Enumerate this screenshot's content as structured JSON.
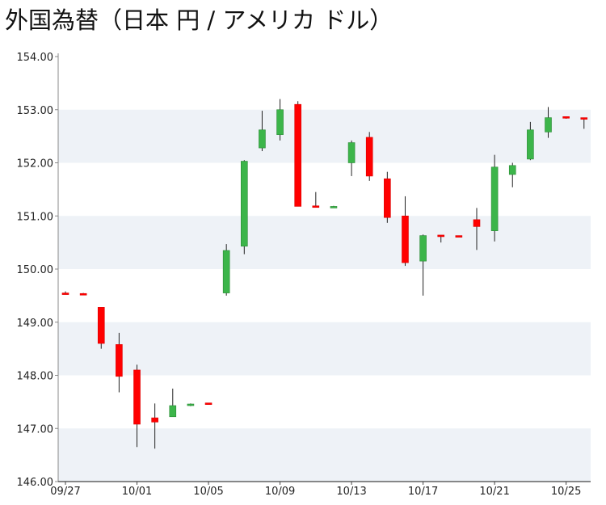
{
  "title": "外国為替（日本 円 / アメリカ ドル）",
  "colors": {
    "up": "#3cb54a",
    "down": "#ff0000",
    "band": "#eef2f7",
    "axis": "#888888"
  },
  "chart_data": {
    "type": "candlestick",
    "title": "外国為替（日本 円 / アメリカ ドル）",
    "ylim": [
      146.0,
      154.0
    ],
    "y_ticks": [
      "146.00",
      "147.00",
      "148.00",
      "149.00",
      "150.00",
      "151.00",
      "152.00",
      "153.00",
      "154.00"
    ],
    "x_tick_labels": [
      "09/27",
      "10/01",
      "10/05",
      "10/09",
      "10/13",
      "10/17",
      "10/21",
      "10/25"
    ],
    "grid_bands": true,
    "candles": [
      {
        "date": "09/27",
        "open": 149.55,
        "high": 149.58,
        "low": 149.52,
        "close": 149.53
      },
      {
        "date": "09/28",
        "open": 149.54,
        "high": 149.55,
        "low": 149.52,
        "close": 149.53
      },
      {
        "date": "09/29",
        "open": 149.28,
        "high": 149.28,
        "low": 148.5,
        "close": 148.6
      },
      {
        "date": "09/30",
        "open": 148.58,
        "high": 148.8,
        "low": 147.68,
        "close": 147.98
      },
      {
        "date": "10/01",
        "open": 148.1,
        "high": 148.2,
        "low": 146.65,
        "close": 147.08
      },
      {
        "date": "10/02",
        "open": 147.2,
        "high": 147.47,
        "low": 146.62,
        "close": 147.12
      },
      {
        "date": "10/03",
        "open": 147.22,
        "high": 147.75,
        "low": 147.22,
        "close": 147.43
      },
      {
        "date": "10/04",
        "open": 147.43,
        "high": 147.47,
        "low": 147.42,
        "close": 147.46
      },
      {
        "date": "10/05",
        "open": 147.48,
        "high": 147.48,
        "low": 147.46,
        "close": 147.47
      },
      {
        "date": "10/06",
        "open": 149.55,
        "high": 150.47,
        "low": 149.5,
        "close": 150.35
      },
      {
        "date": "10/07",
        "open": 150.43,
        "high": 152.05,
        "low": 150.28,
        "close": 152.03
      },
      {
        "date": "10/08",
        "open": 152.28,
        "high": 152.98,
        "low": 152.22,
        "close": 152.62
      },
      {
        "date": "10/09",
        "open": 152.53,
        "high": 153.2,
        "low": 152.42,
        "close": 153.0
      },
      {
        "date": "10/10",
        "open": 153.1,
        "high": 153.16,
        "low": 151.18,
        "close": 151.18
      },
      {
        "date": "10/11",
        "open": 151.19,
        "high": 151.45,
        "low": 151.17,
        "close": 151.18
      },
      {
        "date": "10/12",
        "open": 151.17,
        "high": 151.19,
        "low": 151.16,
        "close": 151.18
      },
      {
        "date": "10/13",
        "open": 152.0,
        "high": 152.42,
        "low": 151.75,
        "close": 152.38
      },
      {
        "date": "10/14",
        "open": 152.48,
        "high": 152.58,
        "low": 151.66,
        "close": 151.75
      },
      {
        "date": "10/15",
        "open": 151.7,
        "high": 151.83,
        "low": 150.87,
        "close": 150.97
      },
      {
        "date": "10/16",
        "open": 151.0,
        "high": 151.37,
        "low": 150.06,
        "close": 150.12
      },
      {
        "date": "10/17",
        "open": 150.15,
        "high": 150.65,
        "low": 149.5,
        "close": 150.63
      },
      {
        "date": "10/18",
        "open": 150.64,
        "high": 150.64,
        "low": 150.5,
        "close": 150.62
      },
      {
        "date": "10/19",
        "open": 150.63,
        "high": 150.63,
        "low": 150.61,
        "close": 150.62
      },
      {
        "date": "10/20",
        "open": 150.93,
        "high": 151.15,
        "low": 150.36,
        "close": 150.8
      },
      {
        "date": "10/21",
        "open": 150.72,
        "high": 152.15,
        "low": 150.52,
        "close": 151.92
      },
      {
        "date": "10/22",
        "open": 151.78,
        "high": 152.0,
        "low": 151.54,
        "close": 151.95
      },
      {
        "date": "10/23",
        "open": 152.07,
        "high": 152.77,
        "low": 152.05,
        "close": 152.62
      },
      {
        "date": "10/24",
        "open": 152.58,
        "high": 153.05,
        "low": 152.47,
        "close": 152.85
      },
      {
        "date": "10/25",
        "open": 152.87,
        "high": 152.87,
        "low": 152.83,
        "close": 152.84
      },
      {
        "date": "10/26",
        "open": 152.85,
        "high": 152.85,
        "low": 152.64,
        "close": 152.83
      }
    ]
  }
}
